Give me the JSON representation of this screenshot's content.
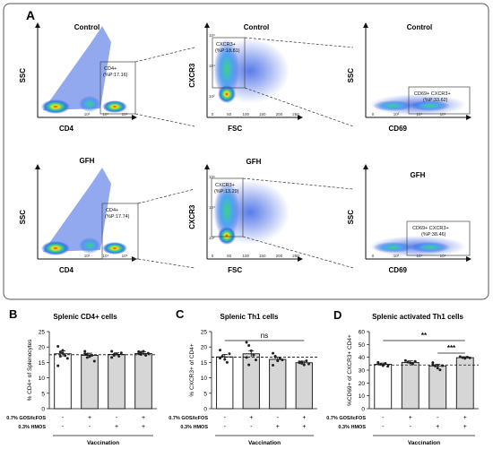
{
  "panel_a": {
    "letter": "A",
    "rows": [
      {
        "plots": [
          {
            "title": "Control",
            "xlabel": "CD4",
            "ylabel": "SSC",
            "gate": [
              "CD4+",
              "(%P:17.16)"
            ],
            "ticks_x": [
              "10²",
              "10⁴",
              "10⁶"
            ],
            "ticks_y": []
          },
          {
            "title": "Control",
            "xlabel": "FSC",
            "ylabel": "CXCR3",
            "gate": [
              "CXCR3+",
              "(%P:18.81)"
            ],
            "ticks_x": [
              "0",
              "50",
              "100",
              "150",
              "200",
              "250"
            ],
            "ticks_y": [
              "10⁶",
              "10⁴",
              "10²"
            ]
          },
          {
            "title": "Control",
            "xlabel": "CD69",
            "ylabel": "SSC",
            "gate": [
              "CD69+ CXCR3+",
              "(%P:33.62)"
            ],
            "ticks_x": [
              "0",
              "10²",
              "10⁴",
              "10⁶"
            ],
            "ticks_y": []
          }
        ]
      },
      {
        "plots": [
          {
            "title": "GFH",
            "xlabel": "CD4",
            "ylabel": "SSC",
            "gate": [
              "CD4+",
              "(%P:17.74)"
            ],
            "ticks_x": [
              "10²",
              "10⁴",
              "10⁶"
            ],
            "ticks_y": []
          },
          {
            "title": "GFH",
            "xlabel": "FSC",
            "ylabel": "CXCR3",
            "gate": [
              "CXCR3+",
              "(%P:13.29)"
            ],
            "ticks_x": [
              "0",
              "50",
              "100",
              "150",
              "200",
              "250"
            ],
            "ticks_y": [
              "10⁶",
              "10⁴",
              "10²"
            ]
          },
          {
            "title": "GFH",
            "xlabel": "CD69",
            "ylabel": "SSC",
            "gate": [
              "CD69+ CXCR3+",
              "(%P:38.46)"
            ],
            "ticks_x": [
              "0",
              "10²",
              "10⁴",
              "10⁶"
            ],
            "ticks_y": []
          }
        ]
      }
    ]
  },
  "chart_data": [
    {
      "type": "bar",
      "letter": "B",
      "title": "Splenic CD4+ cells",
      "ylabel": "% CD4+ of Splenocytes",
      "ylim": [
        0,
        25
      ],
      "yticks": [
        0,
        5,
        10,
        15,
        20,
        25
      ],
      "values": [
        17.8,
        17.3,
        17.6,
        17.9
      ],
      "errors": [
        0.9,
        0.7,
        0.5,
        0.5
      ],
      "reference_line": 17.5,
      "points": [
        [
          20.2,
          18.4,
          18.0,
          17.2,
          16.3,
          13.9,
          17.0,
          18.9
        ],
        [
          18.6,
          17.7,
          16.9,
          17.3,
          15.4,
          17.8,
          16.6
        ],
        [
          18.6,
          17.3,
          17.8,
          17.0,
          18.1,
          16.6,
          17.6
        ],
        [
          18.5,
          17.6,
          18.6,
          17.3,
          18.0,
          17.8,
          18.3
        ]
      ],
      "significance": [],
      "factors": [
        {
          "label": "0.7% GOS/lcFOS",
          "levels": [
            "-",
            "+",
            "-",
            "+"
          ]
        },
        {
          "label": "0.3% HMOS",
          "levels": [
            "-",
            "-",
            "+",
            "+"
          ]
        }
      ],
      "group_label": "Vaccination"
    },
    {
      "type": "bar",
      "letter": "C",
      "title": "Splenic Th1 cells",
      "ylabel": "% CXCR3+ of CD4+",
      "ylim": [
        0,
        25
      ],
      "yticks": [
        0,
        5,
        10,
        15,
        20,
        25
      ],
      "values": [
        16.8,
        17.8,
        16.0,
        14.9
      ],
      "errors": [
        0.8,
        1.0,
        0.7,
        0.5
      ],
      "reference_line": 16.7,
      "points": [
        [
          19.0,
          17.0,
          16.0,
          15.0,
          17.8,
          16.4
        ],
        [
          21.5,
          20.5,
          18.8,
          17.4,
          15.8,
          16.6,
          14.2
        ],
        [
          18.0,
          17.0,
          15.5,
          16.2,
          15.8,
          14.1,
          16.8
        ],
        [
          15.2,
          14.7,
          14.2,
          15.5,
          14.5,
          14.9,
          15.2
        ]
      ],
      "significance": [
        {
          "from": 0,
          "to": 3,
          "label": "ns"
        }
      ],
      "factors": [
        {
          "label": "0.7% GOS/lcFOS",
          "levels": [
            "-",
            "+",
            "-",
            "+"
          ]
        },
        {
          "label": "0.3% HMOS",
          "levels": [
            "-",
            "-",
            "+",
            "+"
          ]
        }
      ],
      "group_label": "Vaccination"
    },
    {
      "type": "bar",
      "letter": "D",
      "title": "Splenic activated Th1 cells",
      "ylabel": "%CD69+ of CXCR3+ CD4+",
      "ylim": [
        0,
        60
      ],
      "yticks": [
        0,
        10,
        20,
        30,
        40,
        50,
        60
      ],
      "values": [
        34.5,
        36.0,
        33.3,
        39.7
      ],
      "errors": [
        1.0,
        1.2,
        1.2,
        0.7
      ],
      "reference_line": 34.0,
      "points": [
        [
          36.0,
          34.5,
          33.5,
          35.2,
          33.0,
          34.8
        ],
        [
          37.5,
          36.3,
          35.6,
          34.8,
          36.8
        ],
        [
          35.8,
          33.2,
          31.6,
          30.2,
          33.5,
          34.4
        ],
        [
          40.5,
          39.8,
          39.2,
          40.1,
          39.5
        ]
      ],
      "significance": [
        {
          "from": 0,
          "to": 3,
          "label": "**"
        },
        {
          "from": 2,
          "to": 3,
          "label": "***"
        }
      ],
      "factors": [
        {
          "label": "0.7% GOS/lcFOS",
          "levels": [
            "-",
            "+",
            "-",
            "+"
          ]
        },
        {
          "label": "0.3% HMOS",
          "levels": [
            "-",
            "-",
            "+",
            "+"
          ]
        }
      ],
      "group_label": "Vaccination"
    }
  ]
}
